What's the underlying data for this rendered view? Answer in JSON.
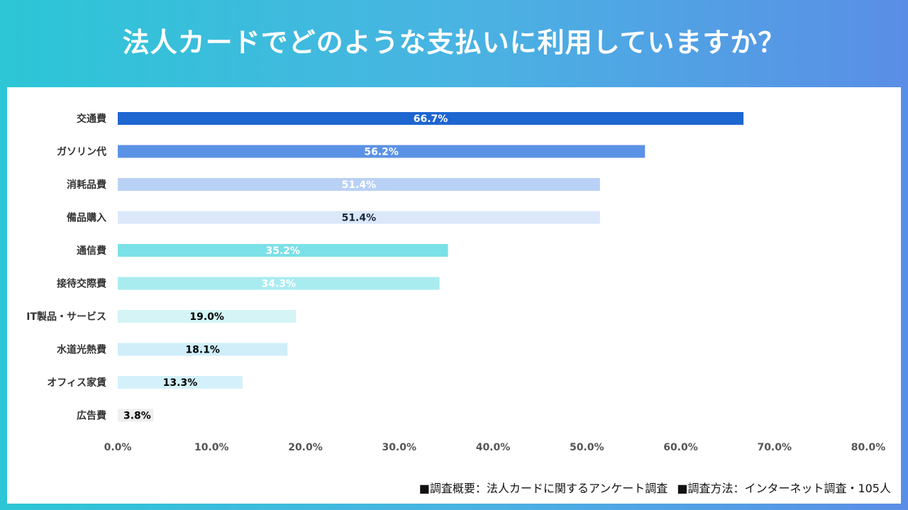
{
  "title": "法人カードでどのような支払いに利用していますか？",
  "footer": {
    "survey_overview": "■調査概要：法人カードに関するアンケート調査",
    "survey_method": "■調査方法：インターネット調査・105人"
  },
  "chart_data": {
    "type": "bar",
    "orientation": "horizontal",
    "title": "法人カードでどのような支払いに利用していますか？",
    "categories": [
      "交通費",
      "ガソリン代",
      "消耗品費",
      "備品購入",
      "通信費",
      "接待交際費",
      "IT製品・サービス",
      "水道光熱費",
      "オフィス家賃",
      "広告費"
    ],
    "values": [
      66.7,
      56.2,
      51.4,
      51.4,
      35.2,
      34.3,
      19.0,
      18.1,
      13.3,
      3.8
    ],
    "data_labels": [
      "66.7%",
      "56.2%",
      "51.4%",
      "51.4%",
      "35.2%",
      "34.3%",
      "19.0%",
      "18.1%",
      "13.3%",
      "3.8%"
    ],
    "bar_colors": [
      "#1e66d0",
      "#5a92e6",
      "#b9d1f5",
      "#dce8fa",
      "#7be0e8",
      "#a9ecf0",
      "#d4f4f6",
      "#cfeefa",
      "#d4f1fb",
      "#eeeeee"
    ],
    "label_colors": [
      "#ffffff",
      "#ffffff",
      "#ffffff",
      "#1a2a3a",
      "#ffffff",
      "#ffffff",
      "#000000",
      "#000000",
      "#000000",
      "#000000"
    ],
    "xlim": [
      0,
      80
    ],
    "xticks": [
      "0.0%",
      "10.0%",
      "20.0%",
      "30.0%",
      "40.0%",
      "50.0%",
      "60.0%",
      "70.0%",
      "80.0%"
    ],
    "xlabel": "",
    "ylabel": "",
    "grid": false
  }
}
